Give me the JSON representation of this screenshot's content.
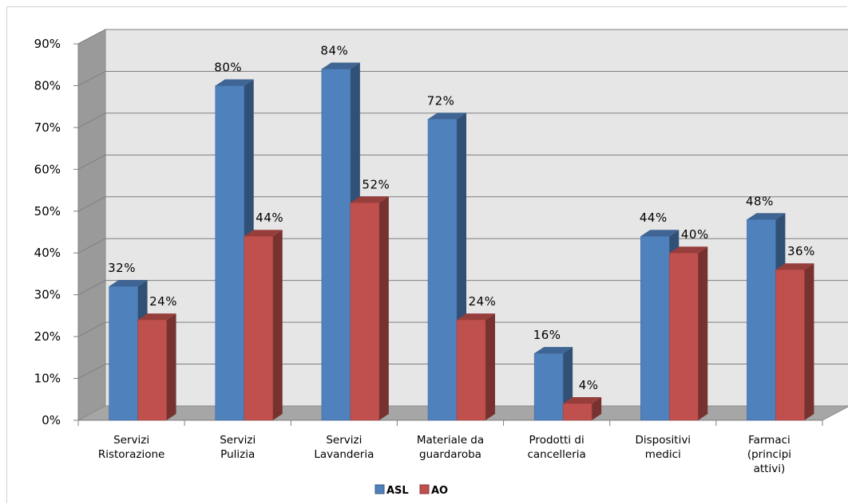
{
  "chart_data": {
    "type": "bar",
    "categories": [
      [
        "Servizi",
        "Ristorazione"
      ],
      [
        "Servizi",
        "Pulizia"
      ],
      [
        "Servizi",
        "Lavanderia"
      ],
      [
        "Materiale da",
        "guardaroba"
      ],
      [
        "Prodotti di",
        "cancelleria"
      ],
      [
        "Dispositivi",
        "medici"
      ],
      [
        "Farmaci",
        "(principi",
        "attivi)"
      ]
    ],
    "series": [
      {
        "name": "ASL",
        "values": [
          32,
          80,
          84,
          72,
          16,
          44,
          48
        ],
        "labels": [
          "32%",
          "80%",
          "84%",
          "72%",
          "16%",
          "44%",
          "48%"
        ]
      },
      {
        "name": "AO",
        "values": [
          24,
          44,
          52,
          24,
          4,
          40,
          36
        ],
        "labels": [
          "24%",
          "44%",
          "52%",
          "24%",
          "4%",
          "40%",
          "36%"
        ]
      }
    ],
    "ylim": [
      0,
      90
    ],
    "yticks": [
      "0%",
      "10%",
      "20%",
      "30%",
      "40%",
      "50%",
      "60%",
      "70%",
      "80%",
      "90%"
    ],
    "grid": true,
    "legend": "bottom",
    "colors": {
      "ASL": "#4f81bd",
      "AO": "#c0504d",
      "wall": "#e6e6e6",
      "floor": "#a6a6a6"
    }
  }
}
